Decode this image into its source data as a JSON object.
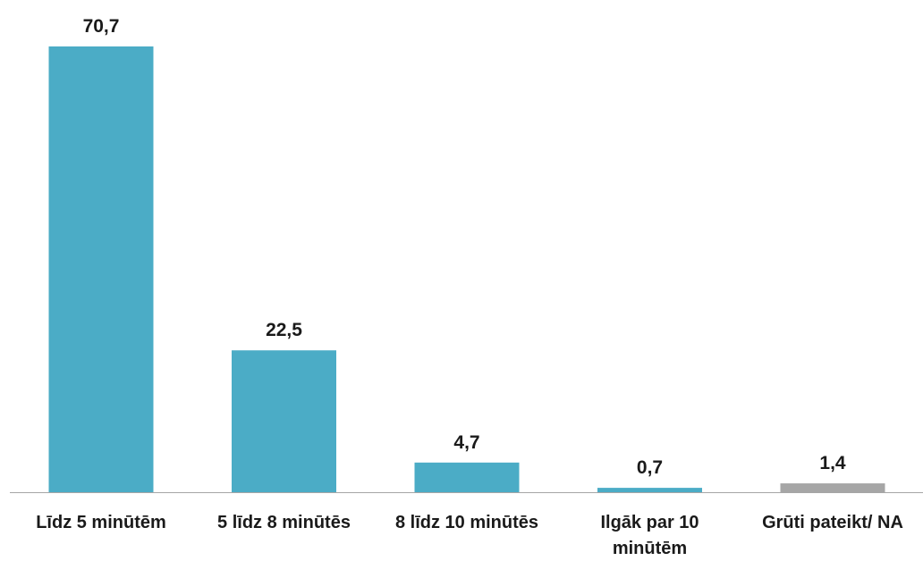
{
  "chart_data": {
    "type": "bar",
    "categories": [
      [
        "Līdz 5 minūtēm"
      ],
      [
        "5 līdz 8 minūtēs"
      ],
      [
        "8 līdz 10 minūtēs"
      ],
      [
        "Ilgāk par 10",
        "minūtēm"
      ],
      [
        "Grūti pateikt/ NA"
      ]
    ],
    "values": [
      70.7,
      22.5,
      4.7,
      0.7,
      1.4
    ],
    "value_labels": [
      "70,7",
      "22,5",
      "4,7",
      "0,7",
      "1,4"
    ],
    "colors": [
      "#4bacc6",
      "#4bacc6",
      "#4bacc6",
      "#4bacc6",
      "#a6a6a6"
    ],
    "axis_color": "#a6a6a6",
    "ylim": [
      0,
      70.7
    ],
    "grid": false,
    "legend": "none"
  }
}
